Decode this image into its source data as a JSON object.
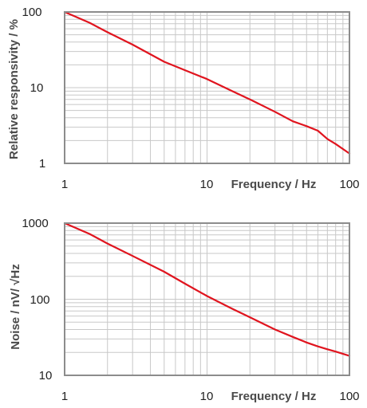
{
  "colors": {
    "series": "#e0141e",
    "frame": "#8c8c8c",
    "grid": "#c8c8c8",
    "label": "#4a4a4a"
  },
  "chart_data": [
    {
      "type": "line",
      "xscale": "log",
      "yscale": "log",
      "xlim": [
        1,
        100
      ],
      "ylim": [
        1,
        100
      ],
      "xlabel": "Frequency / Hz",
      "ylabel": "Relative responsivity / %",
      "xticks": [
        "1",
        "10",
        "100"
      ],
      "yticks": [
        "1",
        "10",
        "100"
      ],
      "grid": true,
      "series": [
        {
          "x": [
            1,
            1.5,
            2,
            3,
            5,
            7,
            10,
            15,
            20,
            30,
            40,
            50,
            60,
            70,
            80,
            100
          ],
          "y": [
            100,
            72,
            54,
            37,
            22,
            17,
            13,
            9,
            7,
            4.8,
            3.6,
            3.1,
            2.7,
            2.1,
            1.8,
            1.35
          ]
        }
      ]
    },
    {
      "type": "line",
      "xscale": "log",
      "yscale": "log",
      "xlim": [
        1,
        100
      ],
      "ylim": [
        10,
        1000
      ],
      "xlabel": "Frequency / Hz",
      "ylabel": "Noise / nV/ √Hz",
      "xticks": [
        "1",
        "10",
        "100"
      ],
      "yticks": [
        "10",
        "100",
        "1000"
      ],
      "grid": true,
      "series": [
        {
          "x": [
            1,
            1.5,
            2,
            3,
            5,
            7,
            10,
            15,
            20,
            30,
            40,
            50,
            60,
            70,
            80,
            100
          ],
          "y": [
            1000,
            720,
            540,
            370,
            230,
            160,
            110,
            75,
            58,
            40,
            32,
            27,
            24,
            22,
            20.5,
            18
          ]
        }
      ]
    }
  ]
}
